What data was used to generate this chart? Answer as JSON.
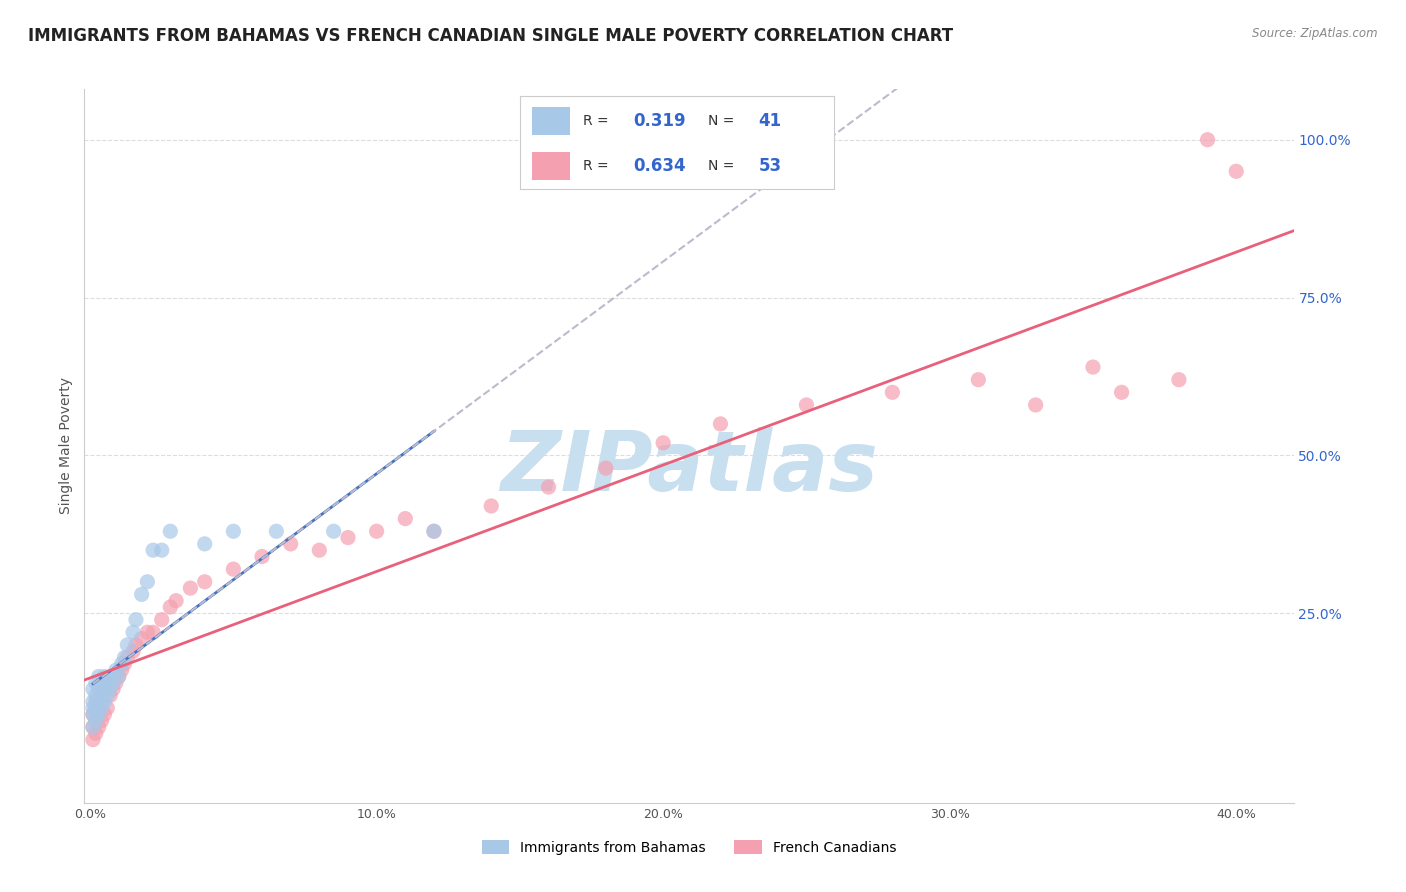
{
  "title": "IMMIGRANTS FROM BAHAMAS VS FRENCH CANADIAN SINGLE MALE POVERTY CORRELATION CHART",
  "source": "Source: ZipAtlas.com",
  "ylabel": "Single Male Poverty",
  "xlim": [
    -0.002,
    0.42
  ],
  "ylim": [
    -0.05,
    1.08
  ],
  "xtick_labels": [
    "0.0%",
    "10.0%",
    "20.0%",
    "30.0%",
    "40.0%"
  ],
  "xtick_vals": [
    0.0,
    0.1,
    0.2,
    0.3,
    0.4
  ],
  "ytick_labels": [
    "100.0%",
    "75.0%",
    "50.0%",
    "25.0%"
  ],
  "ytick_vals": [
    1.0,
    0.75,
    0.5,
    0.25
  ],
  "blue_dot_color": "#A8C8E8",
  "pink_dot_color": "#F4A0B0",
  "trend_blue_color": "#4472C4",
  "trend_pink_color": "#E8607A",
  "trend_gray_color": "#BBBBCC",
  "legend_R_blue": "0.319",
  "legend_N_blue": "41",
  "legend_R_pink": "0.634",
  "legend_N_pink": "53",
  "blue_x": [
    0.001,
    0.001,
    0.001,
    0.001,
    0.001,
    0.002,
    0.002,
    0.002,
    0.002,
    0.003,
    0.003,
    0.003,
    0.003,
    0.004,
    0.004,
    0.004,
    0.005,
    0.005,
    0.005,
    0.006,
    0.006,
    0.007,
    0.007,
    0.008,
    0.009,
    0.01,
    0.011,
    0.012,
    0.013,
    0.015,
    0.016,
    0.018,
    0.02,
    0.022,
    0.025,
    0.028,
    0.04,
    0.05,
    0.065,
    0.085,
    0.12
  ],
  "blue_y": [
    0.07,
    0.09,
    0.1,
    0.11,
    0.13,
    0.08,
    0.1,
    0.12,
    0.14,
    0.09,
    0.11,
    0.13,
    0.15,
    0.1,
    0.12,
    0.14,
    0.11,
    0.13,
    0.15,
    0.12,
    0.14,
    0.13,
    0.15,
    0.14,
    0.16,
    0.15,
    0.17,
    0.18,
    0.2,
    0.22,
    0.24,
    0.28,
    0.3,
    0.35,
    0.35,
    0.38,
    0.36,
    0.38,
    0.38,
    0.38,
    0.38
  ],
  "pink_x": [
    0.001,
    0.001,
    0.001,
    0.002,
    0.002,
    0.002,
    0.003,
    0.003,
    0.004,
    0.004,
    0.005,
    0.005,
    0.006,
    0.006,
    0.007,
    0.008,
    0.009,
    0.01,
    0.011,
    0.012,
    0.013,
    0.015,
    0.016,
    0.018,
    0.02,
    0.022,
    0.025,
    0.028,
    0.03,
    0.035,
    0.04,
    0.05,
    0.06,
    0.07,
    0.08,
    0.09,
    0.1,
    0.11,
    0.12,
    0.14,
    0.16,
    0.18,
    0.2,
    0.22,
    0.25,
    0.28,
    0.31,
    0.33,
    0.35,
    0.36,
    0.38,
    0.39,
    0.4
  ],
  "pink_y": [
    0.05,
    0.07,
    0.09,
    0.06,
    0.08,
    0.11,
    0.07,
    0.1,
    0.08,
    0.12,
    0.09,
    0.13,
    0.1,
    0.14,
    0.12,
    0.13,
    0.14,
    0.15,
    0.16,
    0.17,
    0.18,
    0.19,
    0.2,
    0.21,
    0.22,
    0.22,
    0.24,
    0.26,
    0.27,
    0.29,
    0.3,
    0.32,
    0.34,
    0.36,
    0.35,
    0.37,
    0.38,
    0.4,
    0.38,
    0.42,
    0.45,
    0.48,
    0.52,
    0.55,
    0.58,
    0.6,
    0.62,
    0.58,
    0.64,
    0.6,
    0.62,
    1.0,
    0.95
  ],
  "background_color": "#FFFFFF",
  "grid_color": "#DDDDDD",
  "watermark_text": "ZIPatlas",
  "watermark_color": "#C8DFF0",
  "watermark_fontsize": 60,
  "title_fontsize": 12,
  "axis_label_fontsize": 10,
  "tick_fontsize": 9,
  "R_N_color": "#3366CC",
  "label_color": "#333333"
}
